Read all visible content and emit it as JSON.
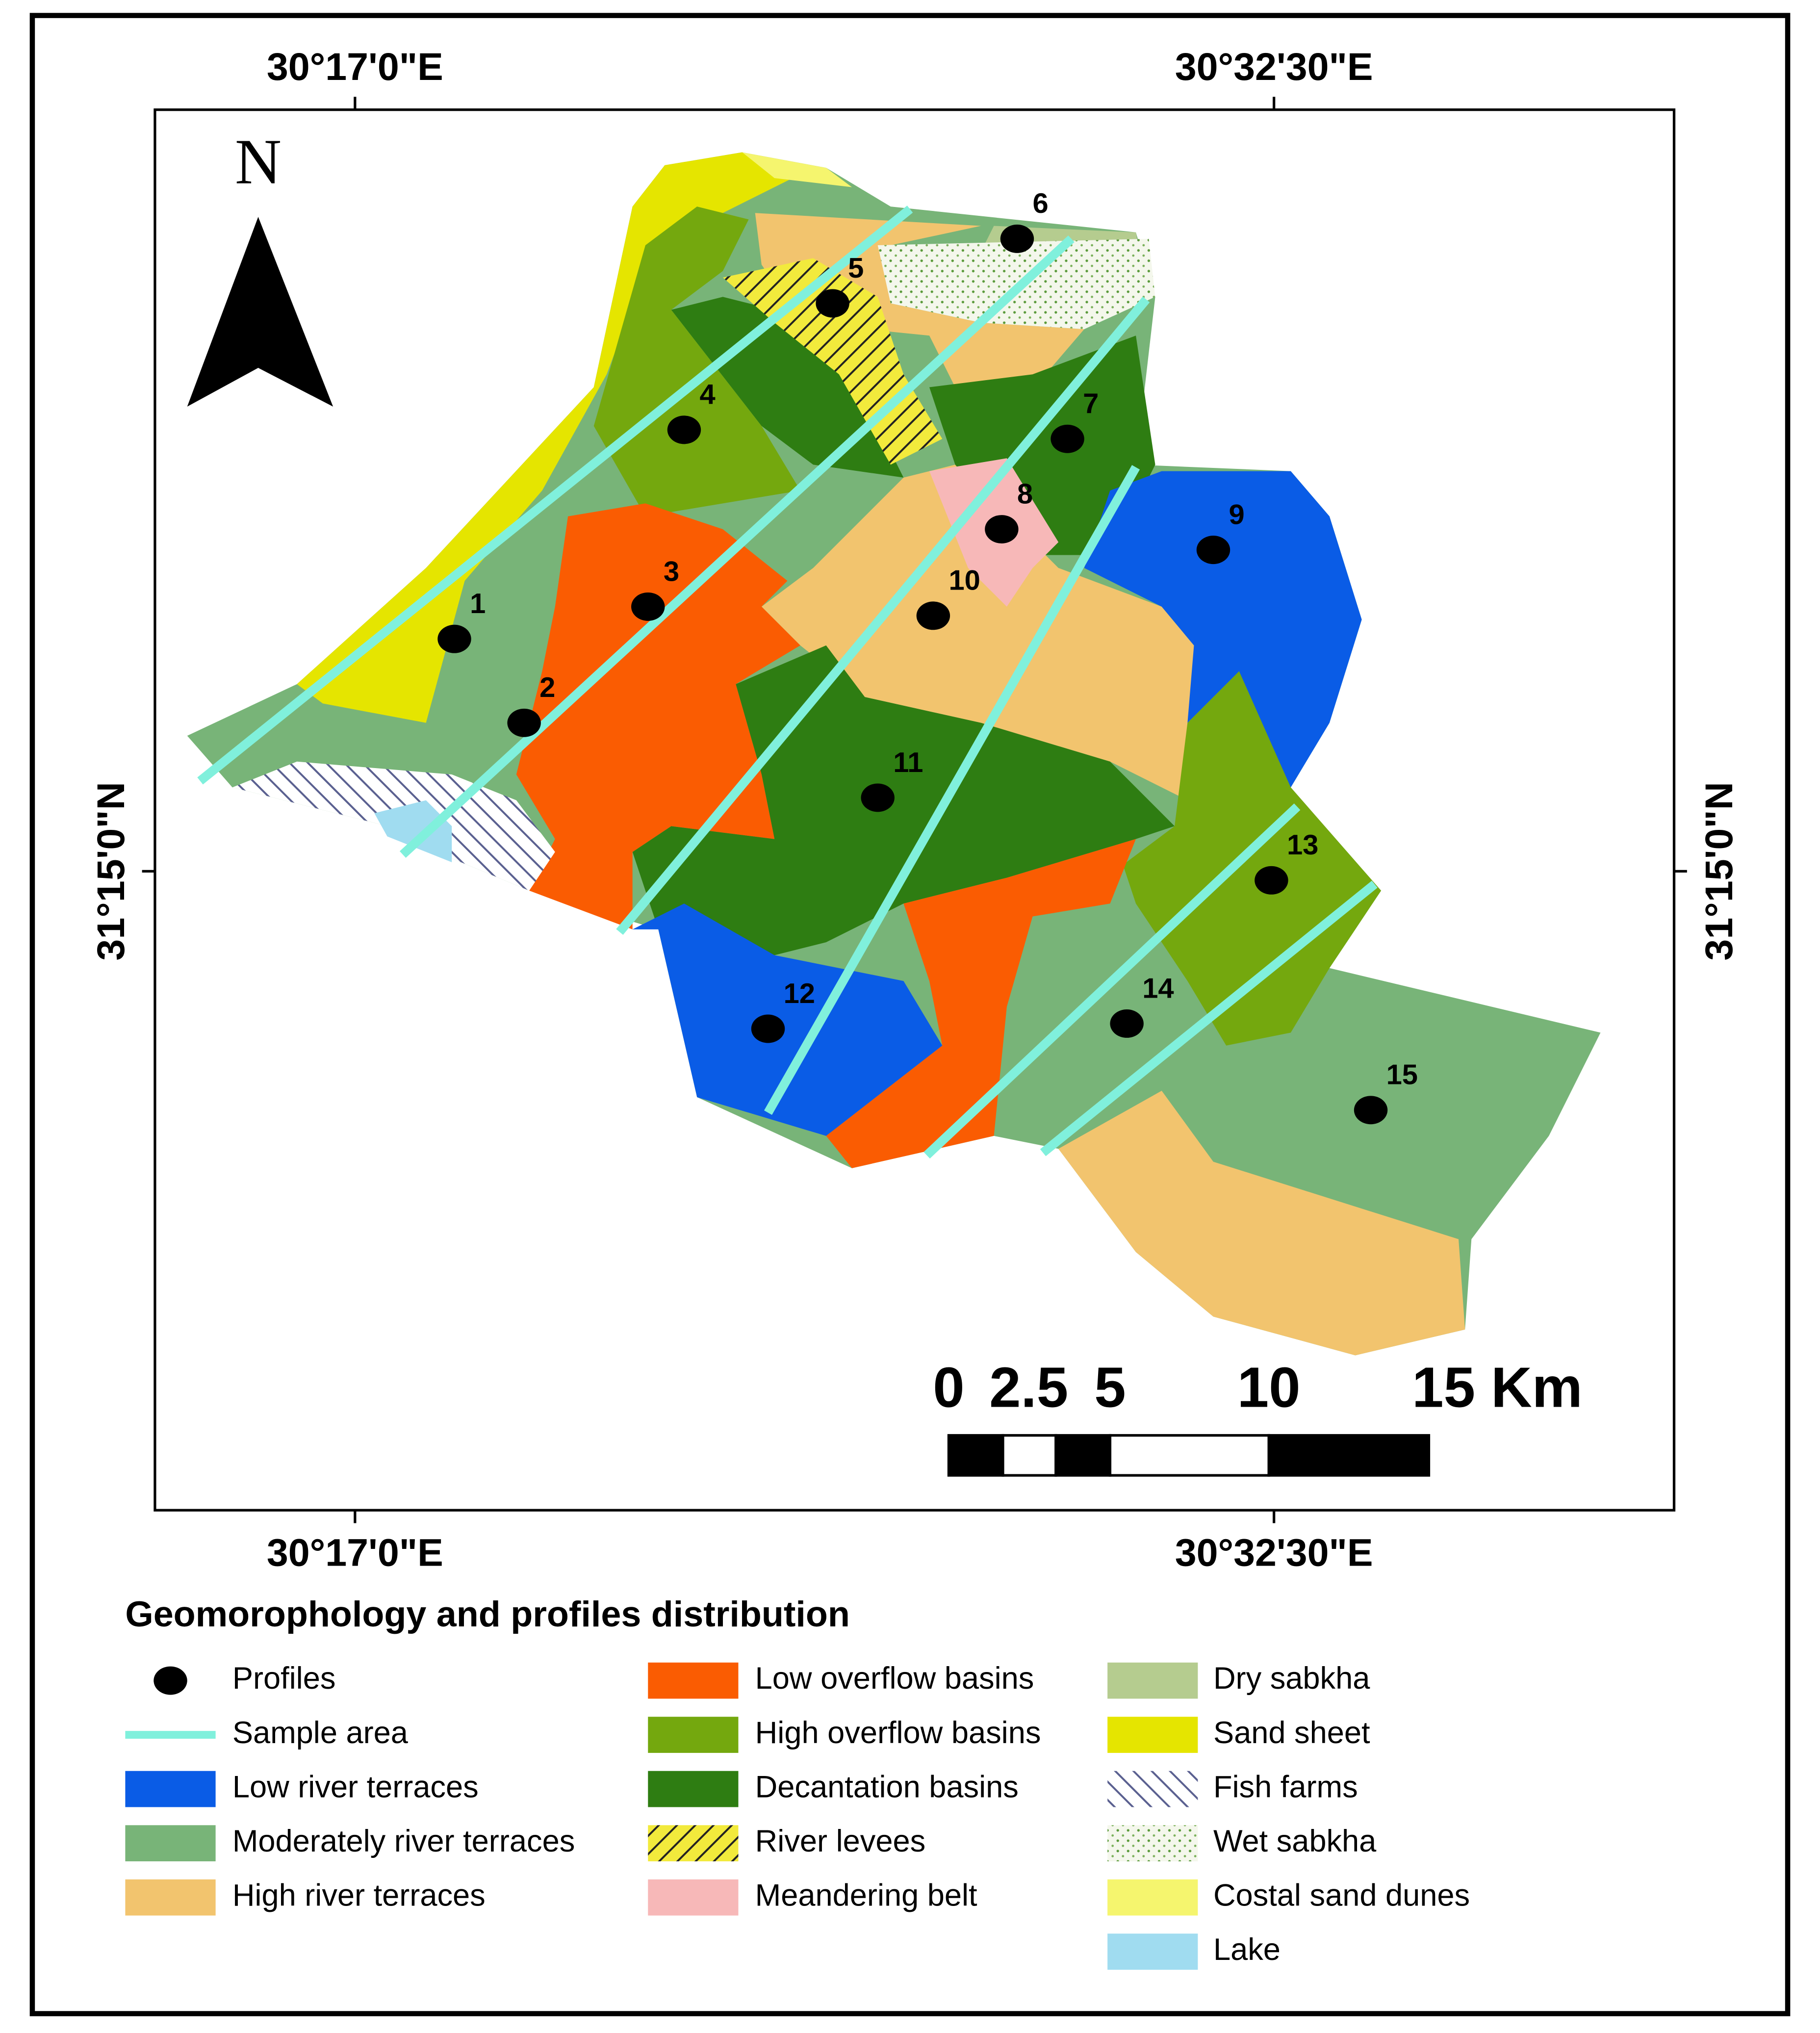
{
  "map": {
    "coordinates": {
      "top": [
        "30°17'0\"E",
        "30°32'30\"E"
      ],
      "bottom": [
        "30°17'0\"E",
        "30°32'30\"E"
      ],
      "left": "31°15'0\"N",
      "right": "31°15'0\"N"
    },
    "north": "N",
    "scale_bar": [
      "0",
      "2.5",
      "5",
      "10",
      "15 Km"
    ],
    "profiles": [
      "1",
      "2",
      "3",
      "4",
      "5",
      "6",
      "7",
      "8",
      "9",
      "10",
      "11",
      "12",
      "13",
      "14",
      "15"
    ],
    "legend": {
      "title": "Geomorophology and profiles distribution",
      "items": [
        "Profiles",
        "Sample area",
        "Low river terraces",
        "Moderately river terraces",
        "High river terraces",
        "Low overflow basins",
        "High overflow basins",
        "Decantation basins",
        "River levees",
        "Meandering belt",
        "Dry sabkha",
        "Sand sheet",
        "Fish farms",
        "Wet sabkha",
        "Costal sand dunes",
        "Lake"
      ]
    }
  }
}
